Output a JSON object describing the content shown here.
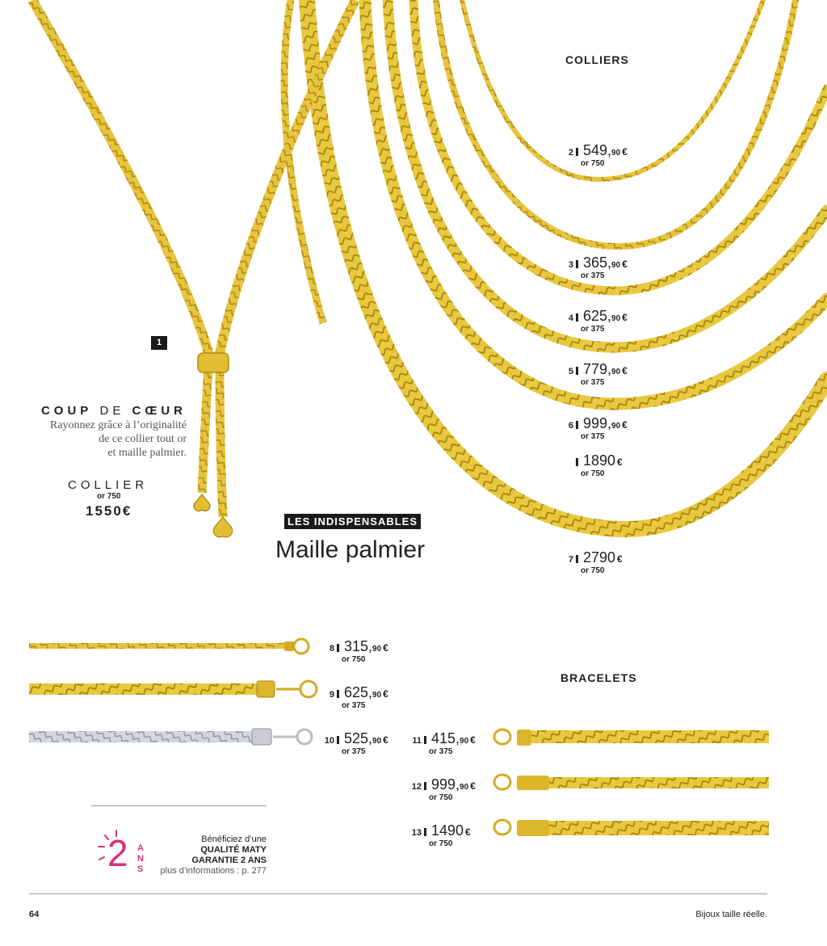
{
  "colors": {
    "gold": "#e3c23a",
    "gold_dark": "#b8901a",
    "silver": "#c8ccd2",
    "accent_pink": "#d6327a"
  },
  "colliers": {
    "title": "COLLIERS",
    "items": [
      {
        "num": "2",
        "int": "549,",
        "dec": "90",
        "cur": "€",
        "metal": "or 750"
      },
      {
        "num": "3",
        "int": "365,",
        "dec": "90",
        "cur": "€",
        "metal": "or 375"
      },
      {
        "num": "4",
        "int": "625,",
        "dec": "90",
        "cur": "€",
        "metal": "or 375"
      },
      {
        "num": "5",
        "int": "779,",
        "dec": "90",
        "cur": "€",
        "metal": "or 375"
      },
      {
        "num": "6",
        "int": "999,",
        "dec": "90",
        "cur": "€",
        "metal": "or 375"
      },
      {
        "num": "",
        "int": "1890",
        "dec": "",
        "cur": "€",
        "metal": "or 750"
      },
      {
        "num": "7",
        "int": "2790",
        "dec": "",
        "cur": "€",
        "metal": "or 750"
      }
    ]
  },
  "featured": {
    "badge": "1",
    "coup_a": "COUP",
    "coup_b": "DE",
    "coup_c": "CŒUR",
    "desc_1": "Rayonnez grâce à l’originalité",
    "desc_2": "de ce collier tout or",
    "desc_3": "et maille palmier.",
    "label": "COLLIER",
    "metal": "or 750",
    "price": "1550",
    "cur": "€"
  },
  "header": {
    "tag": "LES INDISPENSABLES",
    "title": "Maille palmier"
  },
  "bracelets": {
    "title": "BRACELETS",
    "items": [
      {
        "num": "8",
        "int": "315,",
        "dec": "90",
        "cur": "€",
        "metal": "or 750"
      },
      {
        "num": "9",
        "int": "625,",
        "dec": "90",
        "cur": "€",
        "metal": "or 375"
      },
      {
        "num": "10",
        "int": "525,",
        "dec": "90",
        "cur": "€",
        "metal": "or 375"
      },
      {
        "num": "11",
        "int": "415,",
        "dec": "90",
        "cur": "€",
        "metal": "or 375"
      },
      {
        "num": "12",
        "int": "999,",
        "dec": "90",
        "cur": "€",
        "metal": "or 750"
      },
      {
        "num": "13",
        "int": "1490",
        "dec": "",
        "cur": "€",
        "metal": "or 750"
      }
    ]
  },
  "guarantee": {
    "big": "2",
    "ans": "ANS",
    "line1": "Bénéficiez d’une",
    "line2": "QUALITÉ MATY",
    "line3": "GARANTIE 2 ANS",
    "line4": "plus d’informations : p. 277"
  },
  "footer": {
    "page": "64",
    "note": "Bijoux taille réelle."
  }
}
